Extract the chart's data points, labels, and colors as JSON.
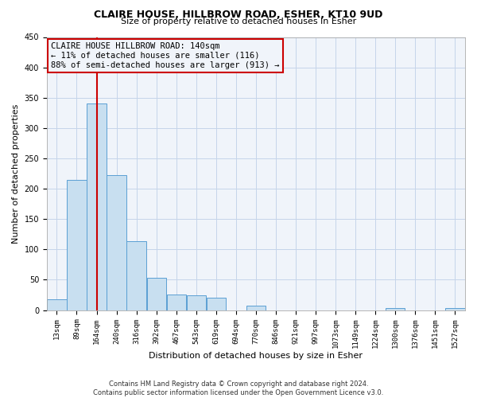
{
  "title": "CLAIRE HOUSE, HILLBROW ROAD, ESHER, KT10 9UD",
  "subtitle": "Size of property relative to detached houses in Esher",
  "xlabel": "Distribution of detached houses by size in Esher",
  "ylabel": "Number of detached properties",
  "bin_labels": [
    "13sqm",
    "89sqm",
    "164sqm",
    "240sqm",
    "316sqm",
    "392sqm",
    "467sqm",
    "543sqm",
    "619sqm",
    "694sqm",
    "770sqm",
    "846sqm",
    "921sqm",
    "997sqm",
    "1073sqm",
    "1149sqm",
    "1224sqm",
    "1300sqm",
    "1376sqm",
    "1451sqm",
    "1527sqm"
  ],
  "bar_values": [
    18,
    215,
    340,
    222,
    113,
    53,
    26,
    25,
    20,
    0,
    7,
    0,
    0,
    0,
    0,
    0,
    0,
    3,
    0,
    0,
    3
  ],
  "bar_color": "#c8dff0",
  "bar_edge_color": "#5a9fd4",
  "vline_color": "#cc0000",
  "vline_x": 2.0,
  "ylim": [
    0,
    450
  ],
  "annotation_title": "CLAIRE HOUSE HILLBROW ROAD: 140sqm",
  "annotation_line1": "← 11% of detached houses are smaller (116)",
  "annotation_line2": "88% of semi-detached houses are larger (913) →",
  "footnote1": "Contains HM Land Registry data © Crown copyright and database right 2024.",
  "footnote2": "Contains public sector information licensed under the Open Government Licence v3.0.",
  "background_color": "#ffffff",
  "plot_bg_color": "#f0f4fa",
  "grid_color": "#c5d5ea",
  "title_fontsize": 9,
  "subtitle_fontsize": 8,
  "xlabel_fontsize": 8,
  "ylabel_fontsize": 8,
  "tick_fontsize": 6.5,
  "annot_fontsize": 7.5,
  "footnote_fontsize": 6
}
